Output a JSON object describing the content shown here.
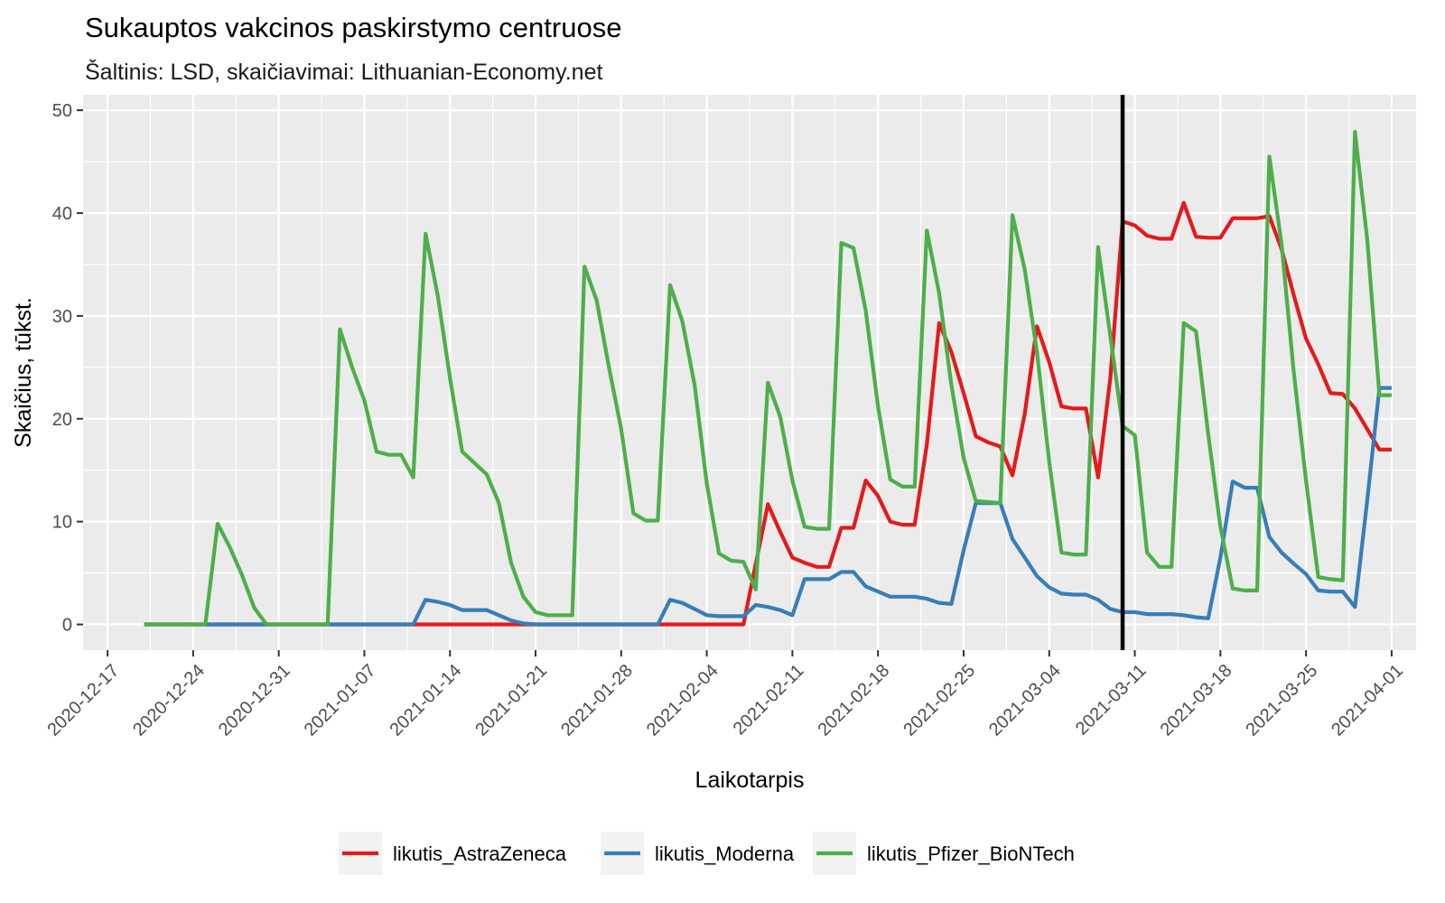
{
  "chart_data": {
    "type": "line",
    "title": "Sukauptos vakcinos paskirstymo centruose",
    "subtitle": "Šaltinis: LSD, skaičiavimai: Lithuanian-Economy.net",
    "xlabel": "Laikotarpis",
    "ylabel": "Skaičius, tūkst.",
    "xlim": [
      "2020-12-15",
      "2021-04-03"
    ],
    "ylim": [
      -2.5,
      51.5
    ],
    "x_ticks": [
      "2020-12-17",
      "2020-12-24",
      "2020-12-31",
      "2021-01-07",
      "2021-01-14",
      "2021-01-21",
      "2021-01-28",
      "2021-02-04",
      "2021-02-11",
      "2021-02-18",
      "2021-02-25",
      "2021-03-04",
      "2021-03-11",
      "2021-03-18",
      "2021-03-25",
      "2021-04-01"
    ],
    "y_ticks": [
      0,
      10,
      20,
      30,
      40,
      50
    ],
    "grid": true,
    "legend_position": "bottom",
    "vline": {
      "x": "2021-03-10",
      "color": "#000000"
    },
    "series": [
      {
        "name": "likutis_AstraZeneca",
        "color": "#E41A1C",
        "points": [
          [
            "2020-12-20",
            0
          ],
          [
            "2021-02-07",
            0
          ],
          [
            "2021-02-09",
            11.7
          ],
          [
            "2021-02-10",
            9.0
          ],
          [
            "2021-02-11",
            6.5
          ],
          [
            "2021-02-12",
            6.0
          ],
          [
            "2021-02-13",
            5.6
          ],
          [
            "2021-02-14",
            5.6
          ],
          [
            "2021-02-15",
            9.4
          ],
          [
            "2021-02-16",
            9.4
          ],
          [
            "2021-02-17",
            14.0
          ],
          [
            "2021-02-18",
            12.5
          ],
          [
            "2021-02-19",
            10.0
          ],
          [
            "2021-02-20",
            9.7
          ],
          [
            "2021-02-21",
            9.7
          ],
          [
            "2021-02-22",
            17.5
          ],
          [
            "2021-02-23",
            29.3
          ],
          [
            "2021-02-24",
            26.5
          ],
          [
            "2021-02-25",
            22.5
          ],
          [
            "2021-02-26",
            18.3
          ],
          [
            "2021-02-27",
            17.7
          ],
          [
            "2021-02-28",
            17.3
          ],
          [
            "2021-03-01",
            14.5
          ],
          [
            "2021-03-02",
            20.5
          ],
          [
            "2021-03-03",
            29.0
          ],
          [
            "2021-03-04",
            25.5
          ],
          [
            "2021-03-05",
            21.2
          ],
          [
            "2021-03-06",
            21.0
          ],
          [
            "2021-03-07",
            21.0
          ],
          [
            "2021-03-08",
            14.3
          ],
          [
            "2021-03-09",
            24.0
          ],
          [
            "2021-03-10",
            39.2
          ],
          [
            "2021-03-11",
            38.8
          ],
          [
            "2021-03-12",
            37.8
          ],
          [
            "2021-03-13",
            37.5
          ],
          [
            "2021-03-14",
            37.5
          ],
          [
            "2021-03-15",
            41.0
          ],
          [
            "2021-03-16",
            37.7
          ],
          [
            "2021-03-17",
            37.6
          ],
          [
            "2021-03-18",
            37.6
          ],
          [
            "2021-03-19",
            39.5
          ],
          [
            "2021-03-20",
            39.5
          ],
          [
            "2021-03-21",
            39.5
          ],
          [
            "2021-03-22",
            39.7
          ],
          [
            "2021-03-23",
            36.5
          ],
          [
            "2021-03-24",
            32.0
          ],
          [
            "2021-03-25",
            27.8
          ],
          [
            "2021-03-26",
            25.3
          ],
          [
            "2021-03-27",
            22.5
          ],
          [
            "2021-03-28",
            22.4
          ],
          [
            "2021-03-29",
            21.0
          ],
          [
            "2021-03-30",
            19.0
          ],
          [
            "2021-03-31",
            17.0
          ],
          [
            "2021-04-01",
            17.0
          ]
        ]
      },
      {
        "name": "likutis_Moderna",
        "color": "#377EB8",
        "points": [
          [
            "2020-12-20",
            0
          ],
          [
            "2021-01-11",
            0
          ],
          [
            "2021-01-12",
            2.4
          ],
          [
            "2021-01-13",
            2.2
          ],
          [
            "2021-01-14",
            1.9
          ],
          [
            "2021-01-15",
            1.4
          ],
          [
            "2021-01-16",
            1.4
          ],
          [
            "2021-01-17",
            1.4
          ],
          [
            "2021-01-18",
            0.9
          ],
          [
            "2021-01-19",
            0.4
          ],
          [
            "2021-01-20",
            0.1
          ],
          [
            "2021-01-21",
            0
          ],
          [
            "2021-01-31",
            0
          ],
          [
            "2021-02-01",
            2.4
          ],
          [
            "2021-02-02",
            2.1
          ],
          [
            "2021-02-03",
            1.5
          ],
          [
            "2021-02-04",
            0.9
          ],
          [
            "2021-02-05",
            0.8
          ],
          [
            "2021-02-06",
            0.8
          ],
          [
            "2021-02-07",
            0.8
          ],
          [
            "2021-02-08",
            1.9
          ],
          [
            "2021-02-09",
            1.7
          ],
          [
            "2021-02-10",
            1.4
          ],
          [
            "2021-02-11",
            0.9
          ],
          [
            "2021-02-12",
            4.4
          ],
          [
            "2021-02-13",
            4.4
          ],
          [
            "2021-02-14",
            4.4
          ],
          [
            "2021-02-15",
            5.1
          ],
          [
            "2021-02-16",
            5.1
          ],
          [
            "2021-02-17",
            3.7
          ],
          [
            "2021-02-18",
            3.2
          ],
          [
            "2021-02-19",
            2.7
          ],
          [
            "2021-02-20",
            2.7
          ],
          [
            "2021-02-21",
            2.7
          ],
          [
            "2021-02-22",
            2.5
          ],
          [
            "2021-02-23",
            2.1
          ],
          [
            "2021-02-24",
            2.0
          ],
          [
            "2021-02-25",
            7.2
          ],
          [
            "2021-02-26",
            11.8
          ],
          [
            "2021-02-27",
            11.8
          ],
          [
            "2021-02-28",
            11.8
          ],
          [
            "2021-03-01",
            8.3
          ],
          [
            "2021-03-02",
            6.5
          ],
          [
            "2021-03-03",
            4.7
          ],
          [
            "2021-03-04",
            3.6
          ],
          [
            "2021-03-05",
            3.0
          ],
          [
            "2021-03-06",
            2.9
          ],
          [
            "2021-03-07",
            2.9
          ],
          [
            "2021-03-08",
            2.4
          ],
          [
            "2021-03-09",
            1.5
          ],
          [
            "2021-03-10",
            1.2
          ],
          [
            "2021-03-11",
            1.2
          ],
          [
            "2021-03-12",
            1.0
          ],
          [
            "2021-03-13",
            1.0
          ],
          [
            "2021-03-14",
            1.0
          ],
          [
            "2021-03-15",
            0.9
          ],
          [
            "2021-03-16",
            0.7
          ],
          [
            "2021-03-17",
            0.6
          ],
          [
            "2021-03-18",
            6.5
          ],
          [
            "2021-03-19",
            13.9
          ],
          [
            "2021-03-20",
            13.3
          ],
          [
            "2021-03-21",
            13.3
          ],
          [
            "2021-03-22",
            8.5
          ],
          [
            "2021-03-23",
            7.0
          ],
          [
            "2021-03-24",
            5.9
          ],
          [
            "2021-03-25",
            4.9
          ],
          [
            "2021-03-26",
            3.3
          ],
          [
            "2021-03-27",
            3.2
          ],
          [
            "2021-03-28",
            3.2
          ],
          [
            "2021-03-29",
            1.7
          ],
          [
            "2021-03-30",
            12.0
          ],
          [
            "2021-03-31",
            23.0
          ],
          [
            "2021-04-01",
            23.0
          ]
        ]
      },
      {
        "name": "likutis_Pfizer_BioNTech",
        "color": "#4DAF4A",
        "points": [
          [
            "2020-12-20",
            0
          ],
          [
            "2020-12-25",
            0
          ],
          [
            "2020-12-26",
            9.8
          ],
          [
            "2020-12-27",
            7.5
          ],
          [
            "2020-12-28",
            4.8
          ],
          [
            "2020-12-29",
            1.6
          ],
          [
            "2020-12-30",
            0
          ],
          [
            "2021-01-04",
            0
          ],
          [
            "2021-01-05",
            28.7
          ],
          [
            "2021-01-06",
            25.0
          ],
          [
            "2021-01-07",
            21.8
          ],
          [
            "2021-01-08",
            16.8
          ],
          [
            "2021-01-09",
            16.5
          ],
          [
            "2021-01-10",
            16.5
          ],
          [
            "2021-01-11",
            14.3
          ],
          [
            "2021-01-12",
            38.0
          ],
          [
            "2021-01-13",
            32.0
          ],
          [
            "2021-01-14",
            24.0
          ],
          [
            "2021-01-15",
            16.8
          ],
          [
            "2021-01-16",
            15.7
          ],
          [
            "2021-01-17",
            14.6
          ],
          [
            "2021-01-18",
            11.8
          ],
          [
            "2021-01-19",
            6.0
          ],
          [
            "2021-01-20",
            2.7
          ],
          [
            "2021-01-21",
            1.2
          ],
          [
            "2021-01-22",
            0.9
          ],
          [
            "2021-01-23",
            0.9
          ],
          [
            "2021-01-24",
            0.9
          ],
          [
            "2021-01-25",
            34.8
          ],
          [
            "2021-01-26",
            31.5
          ],
          [
            "2021-01-27",
            25.0
          ],
          [
            "2021-01-28",
            19.0
          ],
          [
            "2021-01-29",
            10.8
          ],
          [
            "2021-01-30",
            10.1
          ],
          [
            "2021-01-31",
            10.1
          ],
          [
            "2021-02-01",
            33.0
          ],
          [
            "2021-02-02",
            29.5
          ],
          [
            "2021-02-03",
            23.3
          ],
          [
            "2021-02-04",
            13.7
          ],
          [
            "2021-02-05",
            6.9
          ],
          [
            "2021-02-06",
            6.2
          ],
          [
            "2021-02-07",
            6.1
          ],
          [
            "2021-02-08",
            3.4
          ],
          [
            "2021-02-09",
            23.5
          ],
          [
            "2021-02-10",
            20.2
          ],
          [
            "2021-02-11",
            14.0
          ],
          [
            "2021-02-12",
            9.5
          ],
          [
            "2021-02-13",
            9.3
          ],
          [
            "2021-02-14",
            9.3
          ],
          [
            "2021-02-15",
            37.1
          ],
          [
            "2021-02-16",
            36.6
          ],
          [
            "2021-02-17",
            30.5
          ],
          [
            "2021-02-18",
            21.2
          ],
          [
            "2021-02-19",
            14.1
          ],
          [
            "2021-02-20",
            13.4
          ],
          [
            "2021-02-21",
            13.4
          ],
          [
            "2021-02-22",
            38.3
          ],
          [
            "2021-02-23",
            32.2
          ],
          [
            "2021-02-24",
            23.3
          ],
          [
            "2021-02-25",
            16.2
          ],
          [
            "2021-02-26",
            12.0
          ],
          [
            "2021-02-27",
            11.9
          ],
          [
            "2021-02-28",
            11.8
          ],
          [
            "2021-03-01",
            39.8
          ],
          [
            "2021-03-02",
            34.5
          ],
          [
            "2021-03-03",
            26.5
          ],
          [
            "2021-03-04",
            15.8
          ],
          [
            "2021-03-05",
            7.0
          ],
          [
            "2021-03-06",
            6.8
          ],
          [
            "2021-03-07",
            6.8
          ],
          [
            "2021-03-08",
            36.7
          ],
          [
            "2021-03-09",
            28.0
          ],
          [
            "2021-03-10",
            19.3
          ],
          [
            "2021-03-11",
            18.4
          ],
          [
            "2021-03-12",
            7.0
          ],
          [
            "2021-03-13",
            5.6
          ],
          [
            "2021-03-14",
            5.6
          ],
          [
            "2021-03-15",
            29.3
          ],
          [
            "2021-03-16",
            28.5
          ],
          [
            "2021-03-17",
            18.5
          ],
          [
            "2021-03-18",
            9.5
          ],
          [
            "2021-03-19",
            3.5
          ],
          [
            "2021-03-20",
            3.3
          ],
          [
            "2021-03-21",
            3.3
          ],
          [
            "2021-03-22",
            45.5
          ],
          [
            "2021-03-23",
            37.0
          ],
          [
            "2021-03-24",
            24.5
          ],
          [
            "2021-03-25",
            14.0
          ],
          [
            "2021-03-26",
            4.6
          ],
          [
            "2021-03-27",
            4.4
          ],
          [
            "2021-03-28",
            4.3
          ],
          [
            "2021-03-29",
            47.9
          ],
          [
            "2021-03-30",
            37.5
          ],
          [
            "2021-03-31",
            22.3
          ],
          [
            "2021-04-01",
            22.3
          ]
        ]
      }
    ]
  }
}
